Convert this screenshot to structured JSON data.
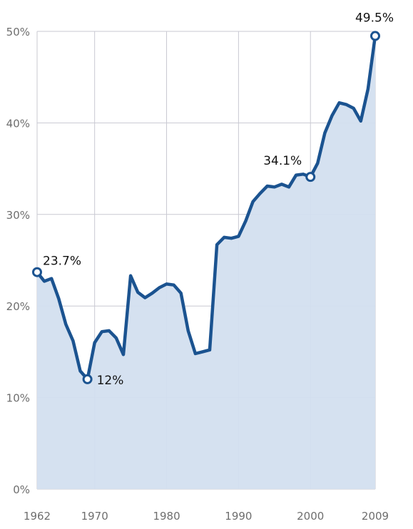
{
  "chart_data": {
    "type": "area",
    "x": [
      1962,
      1963,
      1964,
      1965,
      1966,
      1967,
      1968,
      1969,
      1970,
      1971,
      1972,
      1973,
      1974,
      1975,
      1976,
      1977,
      1978,
      1979,
      1980,
      1981,
      1982,
      1983,
      1984,
      1985,
      1986,
      1987,
      1988,
      1989,
      1990,
      1991,
      1992,
      1993,
      1994,
      1995,
      1996,
      1997,
      1998,
      1999,
      2000,
      2001,
      2002,
      2003,
      2004,
      2005,
      2006,
      2007,
      2008,
      2009
    ],
    "series": [
      {
        "values": [
          23.7,
          22.7,
          23.0,
          20.8,
          18.0,
          16.2,
          12.9,
          12.0,
          16.0,
          17.2,
          17.3,
          16.5,
          14.7,
          23.3,
          21.5,
          20.9,
          21.4,
          22.0,
          22.4,
          22.3,
          21.4,
          17.3,
          14.8,
          15.0,
          15.2,
          26.7,
          27.5,
          27.4,
          27.6,
          29.3,
          31.4,
          32.3,
          33.1,
          33.0,
          33.3,
          33.0,
          34.3,
          34.4,
          34.1,
          35.6,
          38.9,
          40.8,
          42.2,
          42.0,
          41.6,
          40.2,
          43.7,
          49.5
        ]
      }
    ],
    "xticks": [
      "1962",
      "1970",
      "1980",
      "1990",
      "2000",
      "2009"
    ],
    "ytick_labels": [
      "0%",
      "10%",
      "20%",
      "30%",
      "40%",
      "50%"
    ],
    "ylim": [
      0,
      50
    ],
    "grid": true,
    "annotations": [
      {
        "x": 1962,
        "y": 23.7,
        "label": "23.7%"
      },
      {
        "x": 1969,
        "y": 12.0,
        "label": "12%"
      },
      {
        "x": 2000,
        "y": 34.1,
        "label": "34.1%"
      },
      {
        "x": 2009,
        "y": 49.5,
        "label": "49.5%"
      }
    ],
    "colors": {
      "line": "#1b5390",
      "area": "#d3dfef",
      "grid": "#c9c9d2"
    }
  }
}
